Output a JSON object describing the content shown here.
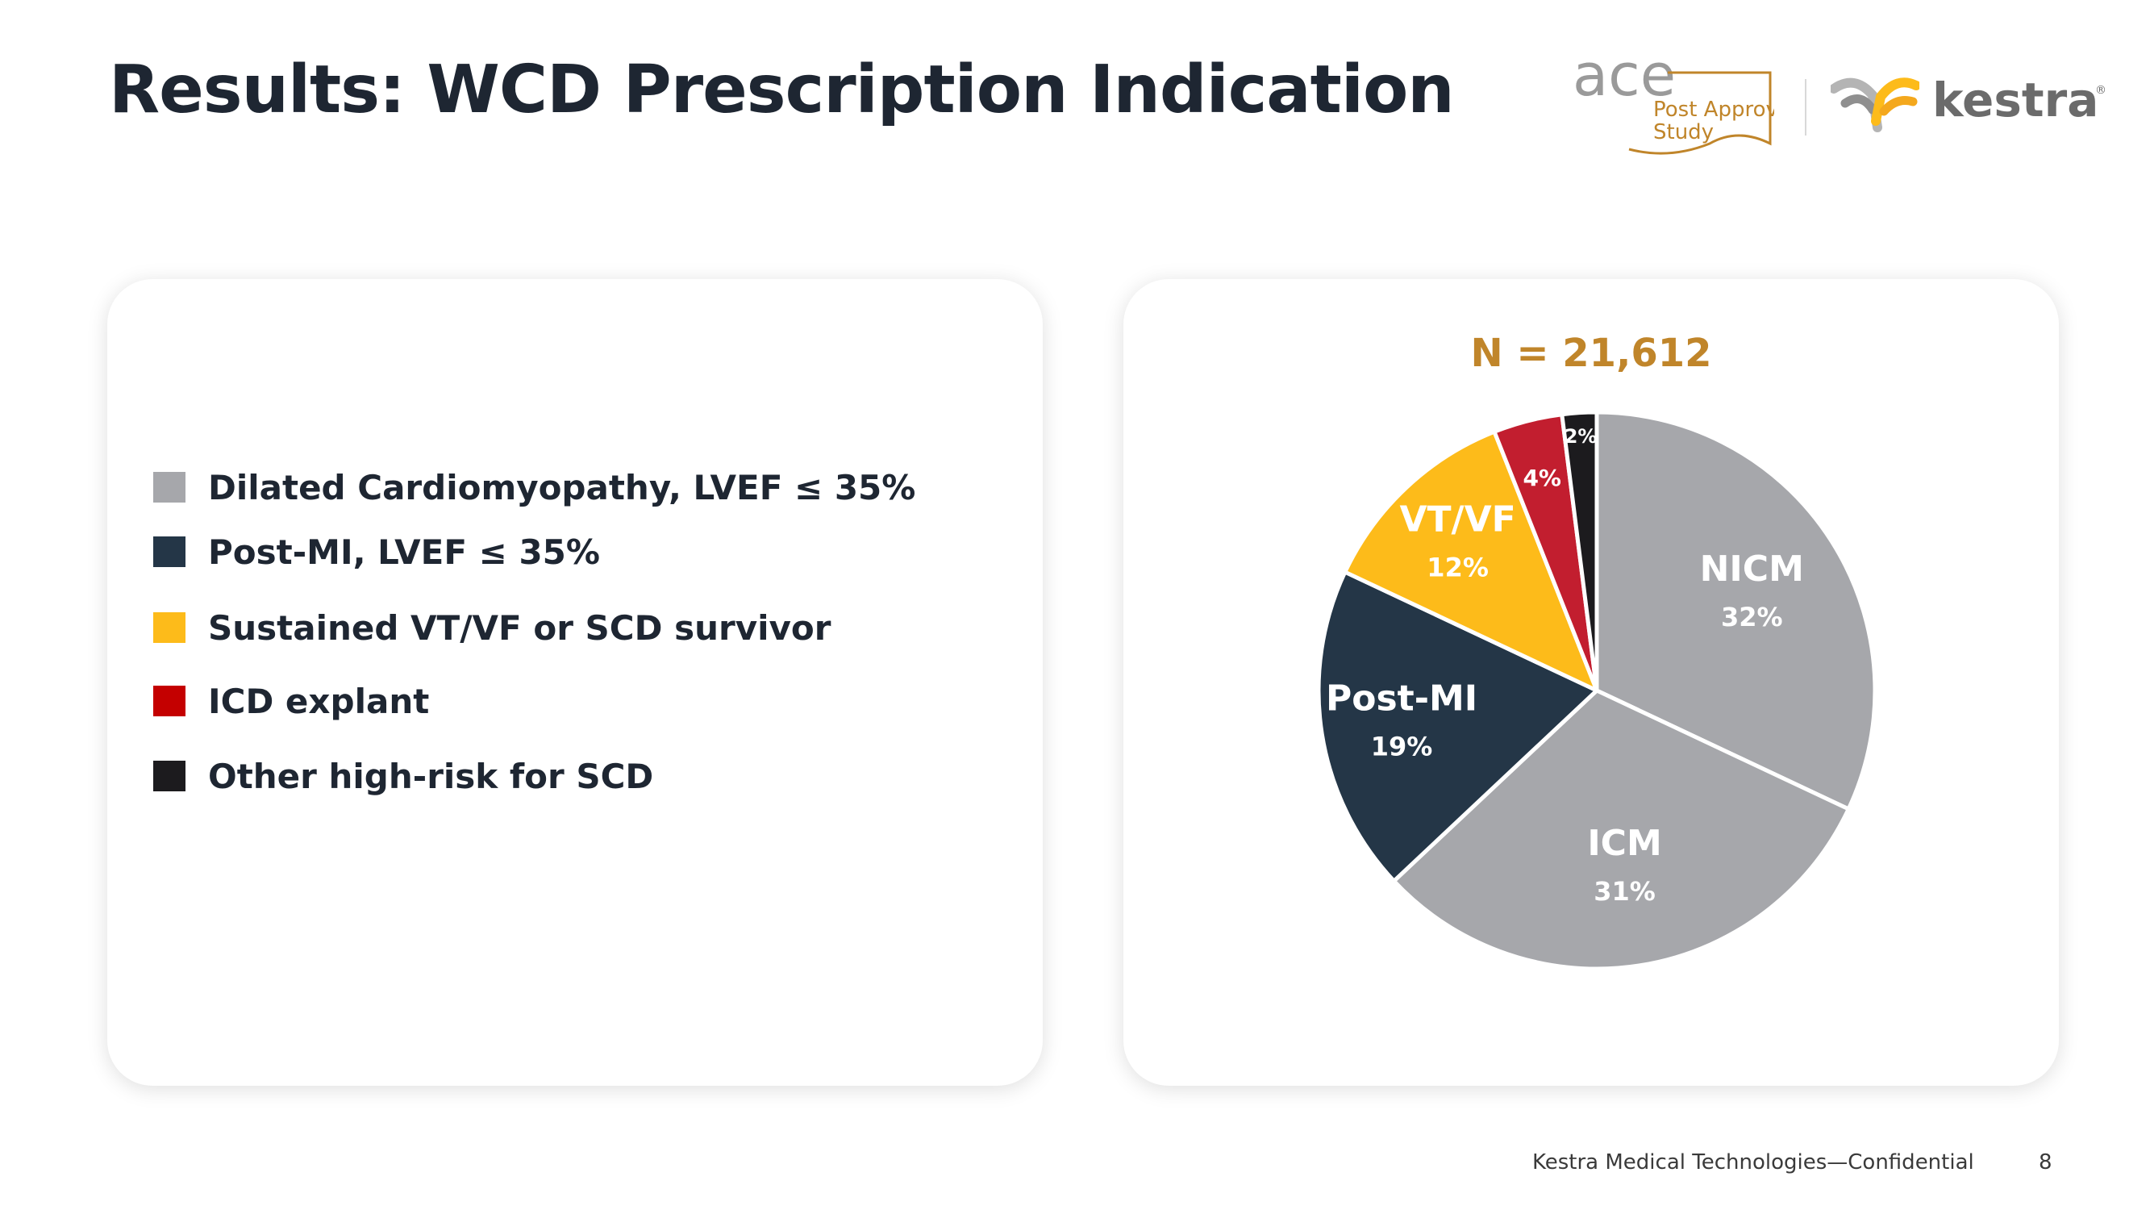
{
  "slide": {
    "title": "Results: WCD Prescription Indication",
    "footer": "Kestra Medical Technologies—Confidential",
    "page_number": "8"
  },
  "logos": {
    "ace_word": "ace",
    "ace_line1": "Post Approval",
    "ace_line2": "Study",
    "kestra_word": "kestra",
    "kestra_reg": "®"
  },
  "colors": {
    "title": "#1e2632",
    "accent_gold": "#c0852a",
    "gray": "#a6a7ab",
    "navy": "#243647",
    "yellow": "#fdbb1a",
    "red": "#c21e2f",
    "black": "#1c1b1e",
    "legend_red": "#c40000"
  },
  "legend": [
    {
      "label": "Dilated Cardiomyopathy, LVEF ≤ 35%",
      "color": "#a6a7ab"
    },
    {
      "label": "Post-MI, LVEF ≤ 35%",
      "color": "#243647"
    },
    {
      "label": "Sustained VT/VF or SCD survivor",
      "color": "#fdbb1a"
    },
    {
      "label": "ICD explant",
      "color": "#c40000"
    },
    {
      "label": "Other high-risk for SCD",
      "color": "#1c1b1e"
    }
  ],
  "chart_data": {
    "type": "pie",
    "title": "N = 21,612",
    "slices": [
      {
        "label": "NICM",
        "value": 32,
        "value_label": "32%",
        "color": "#a6a7ab"
      },
      {
        "label": "ICM",
        "value": 31,
        "value_label": "31%",
        "color": "#a6a7ab"
      },
      {
        "label": "Post-MI",
        "value": 19,
        "value_label": "19%",
        "color": "#243647"
      },
      {
        "label": "VT/VF",
        "value": 12,
        "value_label": "12%",
        "color": "#fdbb1a"
      },
      {
        "label": "",
        "value": 4,
        "value_label": "4%",
        "color": "#c21e2f"
      },
      {
        "label": "",
        "value": 2,
        "value_label": "2%",
        "color": "#1c1b1e"
      }
    ],
    "start_angle_deg": 0,
    "direction": "clockwise"
  }
}
